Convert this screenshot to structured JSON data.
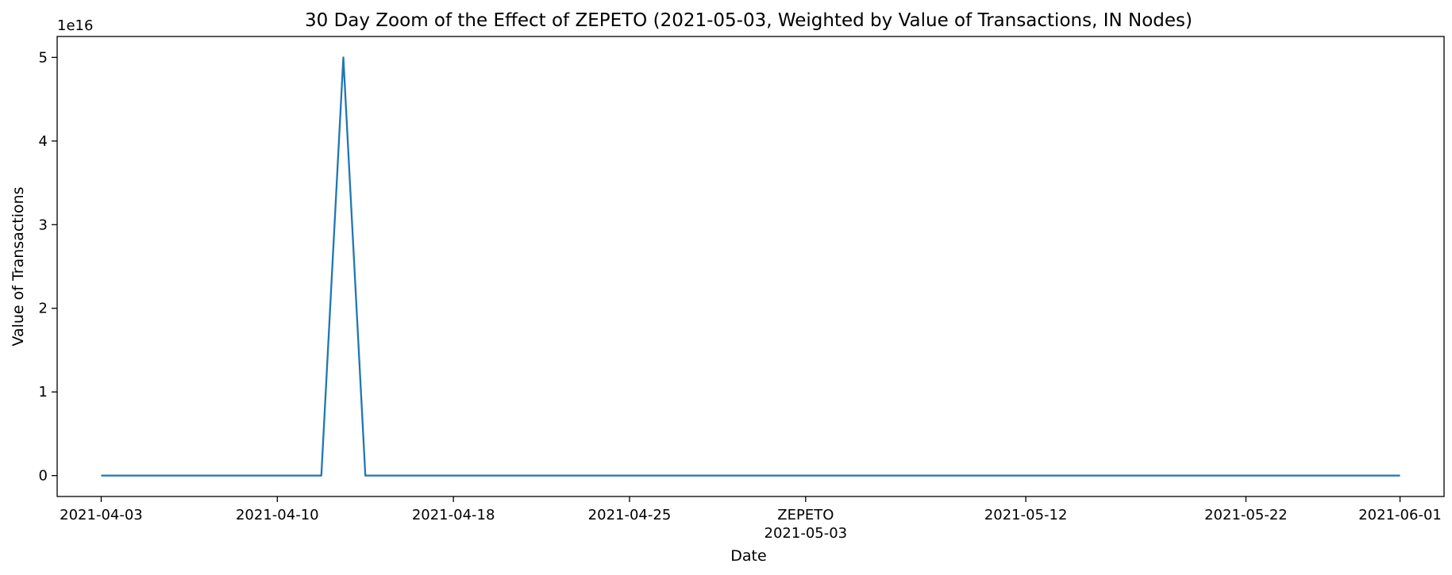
{
  "chart_data": {
    "type": "line",
    "title": "30 Day Zoom of the Effect of ZEPETO (2021-05-03, Weighted by Value of Transactions, IN Nodes)",
    "xlabel": "Date",
    "ylabel": "Value of Transactions",
    "y_multiplier_label": "1e16",
    "xlim": [
      "2021-04-01",
      "2021-06-03"
    ],
    "ylim": [
      -2500000000000000.0,
      5.25e+16
    ],
    "x_ticks": [
      {
        "date": "2021-04-03",
        "label": "2021-04-03"
      },
      {
        "date": "2021-04-11",
        "label": "2021-04-10"
      },
      {
        "date": "2021-04-19",
        "label": "2021-04-18"
      },
      {
        "date": "2021-04-27",
        "label": "2021-04-25"
      },
      {
        "date": "2021-05-05",
        "label": "ZEPETO\n2021-05-03"
      },
      {
        "date": "2021-05-15",
        "label": "2021-05-12"
      },
      {
        "date": "2021-05-25",
        "label": "2021-05-22"
      },
      {
        "date": "2021-06-01",
        "label": "2021-06-01"
      }
    ],
    "y_ticks": [
      {
        "value": 0,
        "label": "0"
      },
      {
        "value": 1e+16,
        "label": "1"
      },
      {
        "value": 2e+16,
        "label": "2"
      },
      {
        "value": 3e+16,
        "label": "3"
      },
      {
        "value": 4e+16,
        "label": "4"
      },
      {
        "value": 5e+16,
        "label": "5"
      }
    ],
    "grid": false,
    "series": [
      {
        "color": "#1f77b4",
        "x": [
          "2021-04-03",
          "2021-04-13",
          "2021-04-14",
          "2021-04-15",
          "2021-06-01"
        ],
        "y": [
          0,
          0,
          5e+16,
          0,
          0
        ]
      }
    ]
  }
}
